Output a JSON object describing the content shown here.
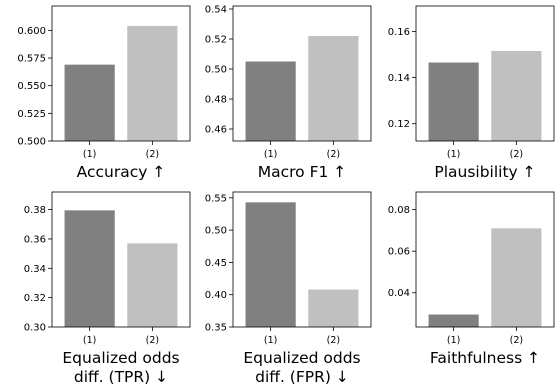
{
  "chart_data": [
    {
      "type": "bar",
      "title": "Accuracy ↑",
      "categories": [
        "(1)",
        "(2)"
      ],
      "values": [
        0.569,
        0.604
      ],
      "ylim": [
        0.5,
        0.622
      ],
      "yticks": [
        0.5,
        0.525,
        0.55,
        0.575,
        0.6
      ],
      "ytick_labels": [
        "0.500",
        "0.525",
        "0.550",
        "0.575",
        "0.600"
      ],
      "colors": [
        "#808080",
        "#c0c0c0"
      ]
    },
    {
      "type": "bar",
      "title": "Macro F1 ↑",
      "categories": [
        "(1)",
        "(2)"
      ],
      "values": [
        0.505,
        0.522
      ],
      "ylim": [
        0.452,
        0.542
      ],
      "yticks": [
        0.46,
        0.48,
        0.5,
        0.52,
        0.54
      ],
      "ytick_labels": [
        "0.46",
        "0.48",
        "0.50",
        "0.52",
        "0.54"
      ],
      "colors": [
        "#808080",
        "#c0c0c0"
      ]
    },
    {
      "type": "bar",
      "title": "Plausibility ↑",
      "categories": [
        "(1)",
        "(2)"
      ],
      "values": [
        0.1465,
        0.1515
      ],
      "ylim": [
        0.1125,
        0.171
      ],
      "yticks": [
        0.12,
        0.14,
        0.16
      ],
      "ytick_labels": [
        "0.12",
        "0.14",
        "0.16"
      ],
      "colors": [
        "#808080",
        "#c0c0c0"
      ]
    },
    {
      "type": "bar",
      "title": [
        "Equalized odds",
        "diff. (TPR) ↓"
      ],
      "categories": [
        "(1)",
        "(2)"
      ],
      "values": [
        0.3795,
        0.357
      ],
      "ylim": [
        0.3,
        0.392
      ],
      "yticks": [
        0.3,
        0.32,
        0.34,
        0.36,
        0.38
      ],
      "ytick_labels": [
        "0.30",
        "0.32",
        "0.34",
        "0.36",
        "0.38"
      ],
      "colors": [
        "#808080",
        "#c0c0c0"
      ]
    },
    {
      "type": "bar",
      "title": [
        "Equalized odds",
        "diff. (FPR) ↓"
      ],
      "categories": [
        "(1)",
        "(2)"
      ],
      "values": [
        0.543,
        0.408
      ],
      "ylim": [
        0.35,
        0.559
      ],
      "yticks": [
        0.35,
        0.4,
        0.45,
        0.5,
        0.55
      ],
      "ytick_labels": [
        "0.35",
        "0.40",
        "0.45",
        "0.50",
        "0.55"
      ],
      "colors": [
        "#808080",
        "#c0c0c0"
      ]
    },
    {
      "type": "bar",
      "title": "Faithfulness ↑",
      "categories": [
        "(1)",
        "(2)"
      ],
      "values": [
        0.0295,
        0.071
      ],
      "ylim": [
        0.0235,
        0.0885
      ],
      "yticks": [
        0.04,
        0.06,
        0.08
      ],
      "ytick_labels": [
        "0.04",
        "0.06",
        "0.08"
      ],
      "colors": [
        "#808080",
        "#c0c0c0"
      ]
    }
  ]
}
